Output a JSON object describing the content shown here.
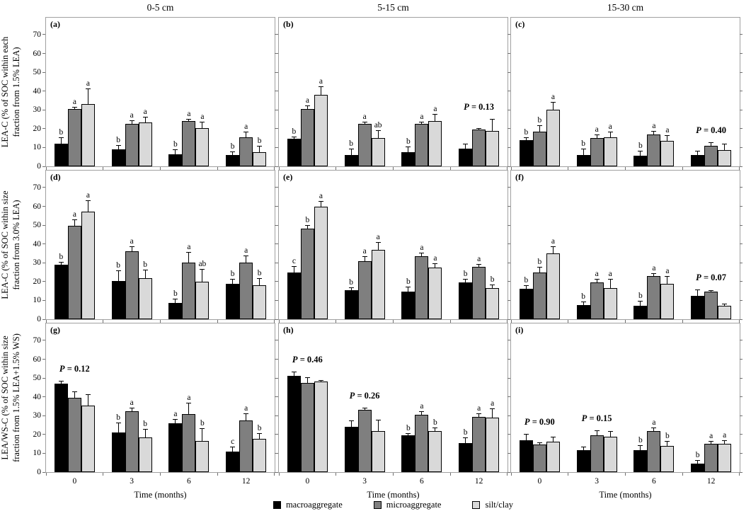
{
  "figure": {
    "columns": [
      "0-5 cm",
      "5-15 cm",
      "15-30 cm"
    ],
    "xlabel": "Time (months)",
    "x_ticks": [
      "0",
      "3",
      "6",
      "12"
    ],
    "y_ticks": [
      0,
      10,
      20,
      30,
      40,
      50,
      60,
      70
    ],
    "ylim": [
      0,
      79
    ],
    "grid": "off",
    "legend_position": "bottom-center",
    "row_ylabels": [
      [
        "LEA-C (% of SOC within each",
        "fraction from 1.5% LEA)"
      ],
      [
        "LEA-C (% of SOC within size",
        "fraction from 3.0% LEA)"
      ],
      [
        "LEA/WS-C (% of SOC within size",
        "fraction from 1.5% LEA+1.5% WS)"
      ]
    ],
    "legend": [
      {
        "label": "macroaggregate",
        "color": "#000000"
      },
      {
        "label": "microaggregate",
        "color": "#7f7f7f"
      },
      {
        "label": "silt/clay",
        "color": "#d9d9d9"
      }
    ],
    "panel_border_color": "#a0a0a0",
    "error_bar_color": "#000000"
  },
  "chart_data": [
    {
      "panel": "(a)",
      "type": "bar",
      "row": 0,
      "col": 0,
      "depth": "0-5 cm",
      "categories": [
        "0",
        "3",
        "6",
        "12"
      ],
      "series": [
        {
          "name": "macroaggregate",
          "values": [
            12,
            9,
            6.5,
            6
          ],
          "errors": [
            3,
            2,
            2,
            1.5
          ],
          "letters": [
            "b",
            "b",
            "b",
            "b"
          ]
        },
        {
          "name": "microaggregate",
          "values": [
            30.5,
            22.5,
            24,
            15.5
          ],
          "errors": [
            0.7,
            1.5,
            1,
            2.5
          ],
          "letters": [
            "a",
            "a",
            "a",
            "a"
          ]
        },
        {
          "name": "silt/clay",
          "values": [
            33,
            23.5,
            20.5,
            7.5
          ],
          "errors": [
            8,
            2.5,
            3,
            3
          ],
          "letters": [
            "a",
            "a",
            "a",
            "b"
          ]
        }
      ],
      "p_annotations": []
    },
    {
      "panel": "(b)",
      "type": "bar",
      "row": 0,
      "col": 1,
      "depth": "5-15 cm",
      "categories": [
        "0",
        "3",
        "6",
        "12"
      ],
      "series": [
        {
          "name": "macroaggregate",
          "values": [
            14.5,
            6,
            7.5,
            9.5
          ],
          "errors": [
            0.8,
            3,
            2.5,
            2
          ],
          "letters": [
            "b",
            "b",
            "b",
            ""
          ]
        },
        {
          "name": "microaggregate",
          "values": [
            30.5,
            22.5,
            22.5,
            19.5
          ],
          "errors": [
            1.5,
            1,
            1,
            0.5
          ],
          "letters": [
            "a",
            "a",
            "a",
            ""
          ]
        },
        {
          "name": "silt/clay",
          "values": [
            38,
            15,
            24,
            19
          ],
          "errors": [
            4,
            4,
            3.5,
            6
          ],
          "letters": [
            "a",
            "ab",
            "a",
            ""
          ]
        }
      ],
      "p_annotations": [
        {
          "text": "P = 0.13",
          "group": 3
        }
      ]
    },
    {
      "panel": "(c)",
      "type": "bar",
      "row": 0,
      "col": 2,
      "depth": "15-30 cm",
      "categories": [
        "0",
        "3",
        "6",
        "12"
      ],
      "series": [
        {
          "name": "macroaggregate",
          "values": [
            14,
            6,
            5.5,
            6
          ],
          "errors": [
            1,
            3,
            2.5,
            2
          ],
          "letters": [
            "b",
            "b",
            "b",
            ""
          ]
        },
        {
          "name": "microaggregate",
          "values": [
            18.5,
            15,
            17,
            11
          ],
          "errors": [
            3,
            1.5,
            1.5,
            1.5
          ],
          "letters": [
            "b",
            "a",
            "a",
            ""
          ]
        },
        {
          "name": "silt/clay",
          "values": [
            30,
            15.5,
            13.5,
            8.5
          ],
          "errors": [
            4,
            2.5,
            2.5,
            3
          ],
          "letters": [
            "a",
            "a",
            "a",
            ""
          ]
        }
      ],
      "p_annotations": [
        {
          "text": "P = 0.40",
          "group": 3
        }
      ]
    },
    {
      "panel": "(d)",
      "type": "bar",
      "row": 1,
      "col": 0,
      "depth": "0-5 cm",
      "categories": [
        "0",
        "3",
        "6",
        "12"
      ],
      "series": [
        {
          "name": "macroaggregate",
          "values": [
            29,
            20.5,
            8.5,
            19
          ],
          "errors": [
            1,
            5,
            2,
            2
          ],
          "letters": [
            "b",
            "b",
            "b",
            "b"
          ]
        },
        {
          "name": "microaggregate",
          "values": [
            49.5,
            36,
            30,
            30
          ],
          "errors": [
            3,
            2.5,
            5.5,
            3.5
          ],
          "letters": [
            "a",
            "a",
            "a",
            "a"
          ]
        },
        {
          "name": "silt/clay",
          "values": [
            57,
            22,
            20,
            18
          ],
          "errors": [
            6,
            4,
            6.5,
            3.5
          ],
          "letters": [
            "a",
            "b",
            "ab",
            "b"
          ]
        }
      ],
      "p_annotations": []
    },
    {
      "panel": "(e)",
      "type": "bar",
      "row": 1,
      "col": 1,
      "depth": "5-15 cm",
      "categories": [
        "0",
        "3",
        "6",
        "12"
      ],
      "series": [
        {
          "name": "macroaggregate",
          "values": [
            25,
            15.5,
            14.5,
            19.5
          ],
          "errors": [
            3,
            1,
            2.5,
            1.5
          ],
          "letters": [
            "c",
            "b",
            "b",
            "b"
          ]
        },
        {
          "name": "microaggregate",
          "values": [
            48,
            31,
            33.5,
            28
          ],
          "errors": [
            1.5,
            2,
            1.5,
            1
          ],
          "letters": [
            "b",
            "a",
            "a",
            "a"
          ]
        },
        {
          "name": "silt/clay",
          "values": [
            60,
            37,
            27.5,
            16.5
          ],
          "errors": [
            2.5,
            3.5,
            2,
            1.5
          ],
          "letters": [
            "a",
            "a",
            "a",
            "b"
          ]
        }
      ],
      "p_annotations": []
    },
    {
      "panel": "(f)",
      "type": "bar",
      "row": 1,
      "col": 2,
      "depth": "15-30 cm",
      "categories": [
        "0",
        "3",
        "6",
        "12"
      ],
      "series": [
        {
          "name": "macroaggregate",
          "values": [
            16,
            7.5,
            7,
            12.5
          ],
          "errors": [
            1.5,
            1.5,
            2.5,
            3
          ],
          "letters": [
            "b",
            "b",
            "b",
            ""
          ]
        },
        {
          "name": "microaggregate",
          "values": [
            25,
            19.5,
            23,
            14.5
          ],
          "errors": [
            2.5,
            1.5,
            1,
            0.5
          ],
          "letters": [
            "b",
            "a",
            "a",
            ""
          ]
        },
        {
          "name": "silt/clay",
          "values": [
            35,
            16.5,
            19,
            7
          ],
          "errors": [
            3.5,
            4.5,
            3.5,
            1
          ],
          "letters": [
            "a",
            "a",
            "a",
            ""
          ]
        }
      ],
      "p_annotations": [
        {
          "text": "P = 0.07",
          "group": 3
        }
      ]
    },
    {
      "panel": "(g)",
      "type": "bar",
      "row": 2,
      "col": 0,
      "depth": "0-5 cm",
      "categories": [
        "0",
        "3",
        "6",
        "12"
      ],
      "series": [
        {
          "name": "macroaggregate",
          "values": [
            47,
            21,
            26,
            11
          ],
          "errors": [
            1,
            5,
            2,
            2
          ],
          "letters": [
            "",
            "b",
            "a",
            "c"
          ]
        },
        {
          "name": "microaggregate",
          "values": [
            39.5,
            32.5,
            31,
            27.5
          ],
          "errors": [
            3,
            1.5,
            5.5,
            3.5
          ],
          "letters": [
            "",
            "a",
            "a",
            "a"
          ]
        },
        {
          "name": "silt/clay",
          "values": [
            35.5,
            18.5,
            16.5,
            17.5
          ],
          "errors": [
            5.5,
            4,
            6.5,
            3
          ],
          "letters": [
            "",
            "b",
            "b",
            "b"
          ]
        }
      ],
      "p_annotations": [
        {
          "text": "P = 0.12",
          "group": 0
        }
      ]
    },
    {
      "panel": "(h)",
      "type": "bar",
      "row": 2,
      "col": 1,
      "depth": "5-15 cm",
      "categories": [
        "0",
        "3",
        "6",
        "12"
      ],
      "series": [
        {
          "name": "macroaggregate",
          "values": [
            51,
            24,
            19.5,
            15.5
          ],
          "errors": [
            2,
            3,
            1,
            2.5
          ],
          "letters": [
            "",
            "",
            "b",
            "b"
          ]
        },
        {
          "name": "microaggregate",
          "values": [
            47.5,
            33,
            30.5,
            29.5
          ],
          "errors": [
            2.5,
            1,
            1.5,
            1.5
          ],
          "letters": [
            "",
            "",
            "a",
            "a"
          ]
        },
        {
          "name": "silt/clay",
          "values": [
            48,
            22,
            22,
            29
          ],
          "errors": [
            0.5,
            5.5,
            1.5,
            4.5
          ],
          "letters": [
            "",
            "",
            "b",
            "a"
          ]
        }
      ],
      "p_annotations": [
        {
          "text": "P = 0.46",
          "group": 0
        },
        {
          "text": "P = 0.26",
          "group": 1
        }
      ]
    },
    {
      "panel": "(i)",
      "type": "bar",
      "row": 2,
      "col": 2,
      "depth": "15-30 cm",
      "categories": [
        "0",
        "3",
        "6",
        "12"
      ],
      "series": [
        {
          "name": "macroaggregate",
          "values": [
            17,
            11.5,
            11.5,
            4.5
          ],
          "errors": [
            3,
            1.5,
            2.5,
            1.5
          ],
          "letters": [
            "",
            "",
            "b",
            "b"
          ]
        },
        {
          "name": "microaggregate",
          "values": [
            14.5,
            19.5,
            22,
            15
          ],
          "errors": [
            1,
            2.5,
            1.5,
            1
          ],
          "letters": [
            "",
            "",
            "a",
            "a"
          ]
        },
        {
          "name": "silt/clay",
          "values": [
            16,
            19,
            14,
            15
          ],
          "errors": [
            2.5,
            2.5,
            2,
            1.5
          ],
          "letters": [
            "",
            "",
            "b",
            "a"
          ]
        }
      ],
      "p_annotations": [
        {
          "text": "P = 0.90",
          "group": 0
        },
        {
          "text": "P = 0.15",
          "group": 1
        }
      ]
    }
  ]
}
